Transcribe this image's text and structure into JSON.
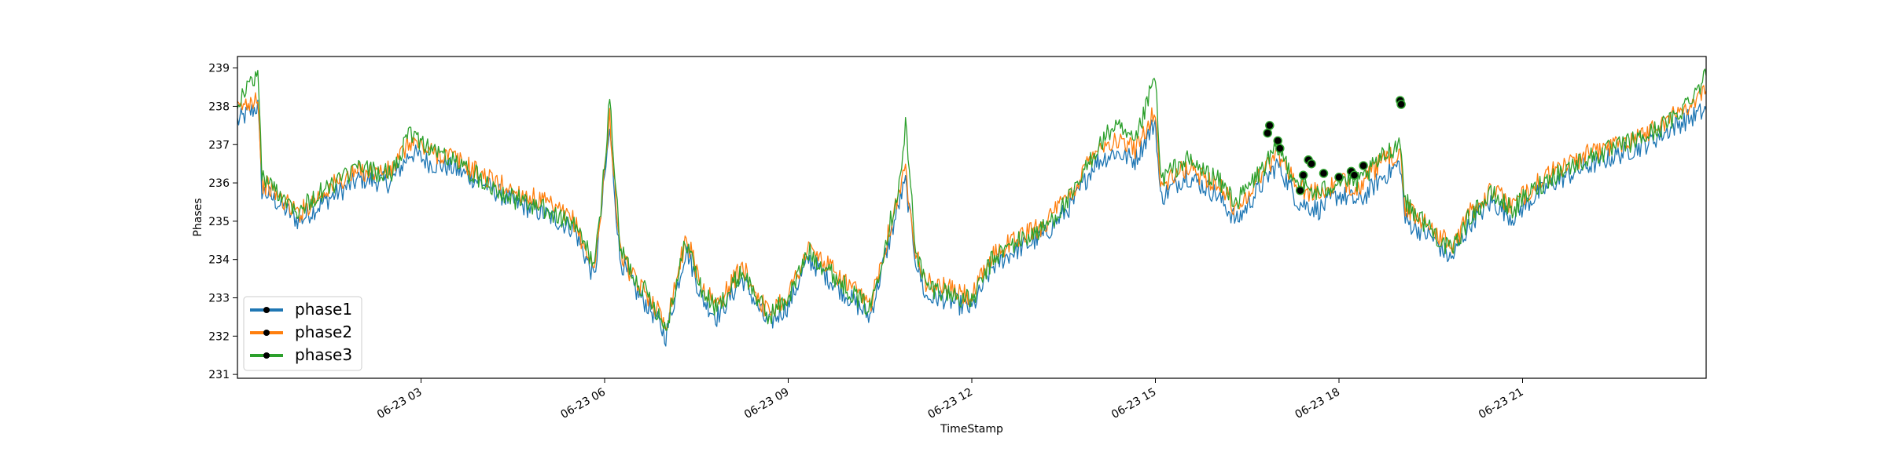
{
  "chart_data": {
    "type": "line",
    "title": "",
    "xlabel": "TimeStamp",
    "ylabel": "Phases",
    "xlim": [
      "2023-06-23 00:00",
      "2023-06-24 00:00"
    ],
    "ylim": [
      230.9,
      239.3
    ],
    "x_ticks": [
      "06-23 03",
      "06-23 06",
      "06-23 09",
      "06-23 12",
      "06-23 15",
      "06-23 18",
      "06-23 21"
    ],
    "y_ticks": [
      231,
      232,
      233,
      234,
      235,
      236,
      237,
      238,
      239
    ],
    "grid": false,
    "legend_position": "lower-left",
    "series": [
      {
        "name": "phase1",
        "color": "#1f77b4",
        "x": [
          "2023-06-23 00:00",
          "2023-06-23 00:20",
          "2023-06-23 00:24",
          "2023-06-23 00:30",
          "2023-06-23 01:00",
          "2023-06-23 01:30",
          "2023-06-23 02:00",
          "2023-06-23 02:30",
          "2023-06-23 02:50",
          "2023-06-23 03:10",
          "2023-06-23 03:30",
          "2023-06-23 04:00",
          "2023-06-23 04:30",
          "2023-06-23 05:00",
          "2023-06-23 05:30",
          "2023-06-23 05:50",
          "2023-06-23 05:55",
          "2023-06-23 06:05",
          "2023-06-23 06:15",
          "2023-06-23 06:30",
          "2023-06-23 06:45",
          "2023-06-23 07:00",
          "2023-06-23 07:20",
          "2023-06-23 07:35",
          "2023-06-23 07:50",
          "2023-06-23 08:15",
          "2023-06-23 08:40",
          "2023-06-23 09:00",
          "2023-06-23 09:20",
          "2023-06-23 09:40",
          "2023-06-23 10:00",
          "2023-06-23 10:20",
          "2023-06-23 10:50",
          "2023-06-23 10:55",
          "2023-06-23 11:05",
          "2023-06-23 11:15",
          "2023-06-23 11:30",
          "2023-06-23 12:00",
          "2023-06-23 12:20",
          "2023-06-23 12:40",
          "2023-06-23 13:10",
          "2023-06-23 13:40",
          "2023-06-23 14:00",
          "2023-06-23 14:20",
          "2023-06-23 14:40",
          "2023-06-23 15:00",
          "2023-06-23 15:05",
          "2023-06-23 15:30",
          "2023-06-23 16:00",
          "2023-06-23 16:20",
          "2023-06-23 16:40",
          "2023-06-23 17:00",
          "2023-06-23 17:20",
          "2023-06-23 17:40",
          "2023-06-23 18:00",
          "2023-06-23 18:20",
          "2023-06-23 18:40",
          "2023-06-23 19:00",
          "2023-06-23 19:05",
          "2023-06-23 19:30",
          "2023-06-23 19:50",
          "2023-06-23 20:10",
          "2023-06-23 20:30",
          "2023-06-23 20:50",
          "2023-06-23 21:10",
          "2023-06-23 21:30",
          "2023-06-23 22:00",
          "2023-06-23 22:30",
          "2023-06-23 23:00",
          "2023-06-23 23:30",
          "2023-06-24 00:00"
        ],
        "values": [
          237.6,
          238.0,
          235.8,
          235.7,
          235.0,
          235.6,
          236.1,
          236.0,
          236.8,
          236.5,
          236.4,
          236.0,
          235.5,
          235.2,
          234.8,
          233.5,
          234.8,
          237.4,
          234.0,
          233.2,
          232.7,
          232.0,
          234.3,
          233.0,
          232.5,
          233.5,
          232.3,
          232.8,
          234.0,
          233.5,
          233.0,
          232.5,
          235.6,
          236.0,
          234.0,
          233.0,
          233.0,
          232.7,
          233.8,
          234.2,
          234.6,
          235.5,
          236.5,
          236.8,
          236.6,
          237.6,
          235.6,
          236.2,
          235.7,
          235.0,
          235.8,
          236.5,
          235.5,
          235.3,
          235.7,
          235.5,
          236.1,
          236.5,
          235.0,
          234.6,
          234.0,
          235.0,
          235.5,
          235.1,
          235.6,
          236.0,
          236.4,
          236.7,
          237.0,
          237.5,
          237.9
        ]
      },
      {
        "name": "phase2",
        "color": "#ff7f0e",
        "x": [
          "2023-06-23 00:00",
          "2023-06-23 00:20",
          "2023-06-23 00:24",
          "2023-06-23 00:30",
          "2023-06-23 01:00",
          "2023-06-23 01:30",
          "2023-06-23 02:00",
          "2023-06-23 02:30",
          "2023-06-23 02:50",
          "2023-06-23 03:10",
          "2023-06-23 03:30",
          "2023-06-23 04:00",
          "2023-06-23 04:30",
          "2023-06-23 05:00",
          "2023-06-23 05:30",
          "2023-06-23 05:50",
          "2023-06-23 05:55",
          "2023-06-23 06:05",
          "2023-06-23 06:15",
          "2023-06-23 06:30",
          "2023-06-23 06:45",
          "2023-06-23 07:00",
          "2023-06-23 07:20",
          "2023-06-23 07:35",
          "2023-06-23 07:50",
          "2023-06-23 08:15",
          "2023-06-23 08:40",
          "2023-06-23 09:00",
          "2023-06-23 09:20",
          "2023-06-23 09:40",
          "2023-06-23 10:00",
          "2023-06-23 10:20",
          "2023-06-23 10:50",
          "2023-06-23 10:55",
          "2023-06-23 11:05",
          "2023-06-23 11:15",
          "2023-06-23 11:30",
          "2023-06-23 12:00",
          "2023-06-23 12:20",
          "2023-06-23 12:40",
          "2023-06-23 13:10",
          "2023-06-23 13:40",
          "2023-06-23 14:00",
          "2023-06-23 14:20",
          "2023-06-23 14:40",
          "2023-06-23 15:00",
          "2023-06-23 15:05",
          "2023-06-23 15:30",
          "2023-06-23 16:00",
          "2023-06-23 16:20",
          "2023-06-23 16:40",
          "2023-06-23 17:00",
          "2023-06-23 17:20",
          "2023-06-23 17:40",
          "2023-06-23 18:00",
          "2023-06-23 18:20",
          "2023-06-23 18:40",
          "2023-06-23 19:00",
          "2023-06-23 19:05",
          "2023-06-23 19:30",
          "2023-06-23 19:50",
          "2023-06-23 20:10",
          "2023-06-23 20:30",
          "2023-06-23 20:50",
          "2023-06-23 21:10",
          "2023-06-23 21:30",
          "2023-06-23 22:00",
          "2023-06-23 22:30",
          "2023-06-23 23:00",
          "2023-06-23 23:30",
          "2023-06-24 00:00"
        ],
        "values": [
          237.9,
          238.3,
          236.0,
          235.9,
          235.2,
          235.9,
          236.3,
          236.3,
          237.1,
          236.8,
          236.7,
          236.2,
          235.8,
          235.5,
          235.0,
          233.7,
          235.0,
          237.7,
          234.2,
          233.4,
          233.0,
          232.3,
          234.6,
          233.3,
          232.8,
          233.8,
          232.6,
          233.1,
          234.3,
          233.8,
          233.3,
          232.8,
          235.9,
          236.3,
          234.3,
          233.4,
          233.3,
          233.0,
          234.1,
          234.5,
          234.9,
          235.8,
          236.9,
          237.1,
          236.9,
          237.9,
          235.9,
          236.4,
          236.0,
          235.3,
          236.1,
          236.8,
          235.9,
          235.7,
          236.0,
          235.9,
          236.5,
          236.8,
          235.3,
          234.9,
          234.3,
          235.3,
          235.8,
          235.4,
          235.9,
          236.3,
          236.7,
          237.0,
          237.3,
          237.8,
          238.4
        ]
      },
      {
        "name": "phase3",
        "color": "#2ca02c",
        "x": [
          "2023-06-23 00:00",
          "2023-06-23 00:20",
          "2023-06-23 00:24",
          "2023-06-23 00:30",
          "2023-06-23 01:00",
          "2023-06-23 01:30",
          "2023-06-23 02:00",
          "2023-06-23 02:30",
          "2023-06-23 02:50",
          "2023-06-23 03:10",
          "2023-06-23 03:30",
          "2023-06-23 04:00",
          "2023-06-23 04:30",
          "2023-06-23 05:00",
          "2023-06-23 05:30",
          "2023-06-23 05:50",
          "2023-06-23 05:55",
          "2023-06-23 06:05",
          "2023-06-23 06:15",
          "2023-06-23 06:30",
          "2023-06-23 06:45",
          "2023-06-23 07:00",
          "2023-06-23 07:20",
          "2023-06-23 07:35",
          "2023-06-23 07:50",
          "2023-06-23 08:15",
          "2023-06-23 08:40",
          "2023-06-23 09:00",
          "2023-06-23 09:20",
          "2023-06-23 09:40",
          "2023-06-23 10:00",
          "2023-06-23 10:20",
          "2023-06-23 10:50",
          "2023-06-23 10:55",
          "2023-06-23 11:05",
          "2023-06-23 11:15",
          "2023-06-23 11:30",
          "2023-06-23 12:00",
          "2023-06-23 12:20",
          "2023-06-23 12:40",
          "2023-06-23 13:10",
          "2023-06-23 13:40",
          "2023-06-23 14:00",
          "2023-06-23 14:20",
          "2023-06-23 14:40",
          "2023-06-23 15:00",
          "2023-06-23 15:05",
          "2023-06-23 15:30",
          "2023-06-23 16:00",
          "2023-06-23 16:20",
          "2023-06-23 16:40",
          "2023-06-23 17:00",
          "2023-06-23 17:20",
          "2023-06-23 17:40",
          "2023-06-23 18:00",
          "2023-06-23 18:20",
          "2023-06-23 18:40",
          "2023-06-23 19:00",
          "2023-06-23 19:05",
          "2023-06-23 19:30",
          "2023-06-23 19:50",
          "2023-06-23 20:10",
          "2023-06-23 20:30",
          "2023-06-23 20:50",
          "2023-06-23 21:10",
          "2023-06-23 21:30",
          "2023-06-23 22:00",
          "2023-06-23 22:30",
          "2023-06-23 23:00",
          "2023-06-23 23:30",
          "2023-06-24 00:00"
        ],
        "values": [
          238.1,
          238.9,
          236.2,
          236.0,
          235.3,
          235.9,
          236.4,
          236.2,
          237.3,
          236.9,
          236.6,
          236.1,
          235.6,
          235.3,
          234.9,
          233.9,
          234.9,
          238.2,
          234.3,
          233.5,
          233.0,
          232.2,
          234.5,
          233.2,
          232.7,
          233.7,
          232.5,
          233.0,
          234.2,
          233.7,
          233.2,
          232.7,
          236.1,
          237.5,
          234.3,
          233.3,
          233.2,
          232.9,
          234.0,
          234.4,
          234.8,
          235.7,
          236.8,
          237.5,
          237.0,
          238.8,
          236.1,
          236.6,
          236.1,
          235.5,
          236.2,
          236.9,
          236.0,
          235.7,
          236.1,
          236.0,
          236.6,
          237.1,
          235.5,
          234.8,
          234.2,
          235.2,
          235.7,
          235.3,
          235.8,
          236.2,
          236.6,
          236.9,
          237.2,
          237.7,
          238.8
        ]
      }
    ],
    "markers": [
      {
        "x": "2023-06-23 16:50",
        "y": 237.3
      },
      {
        "x": "2023-06-23 16:52",
        "y": 237.5
      },
      {
        "x": "2023-06-23 17:00",
        "y": 237.1
      },
      {
        "x": "2023-06-23 17:02",
        "y": 236.9
      },
      {
        "x": "2023-06-23 17:30",
        "y": 236.6
      },
      {
        "x": "2023-06-23 17:33",
        "y": 236.5
      },
      {
        "x": "2023-06-23 17:25",
        "y": 236.2
      },
      {
        "x": "2023-06-23 17:22",
        "y": 235.8
      },
      {
        "x": "2023-06-23 17:45",
        "y": 236.25
      },
      {
        "x": "2023-06-23 18:00",
        "y": 236.15
      },
      {
        "x": "2023-06-23 18:12",
        "y": 236.3
      },
      {
        "x": "2023-06-23 18:15",
        "y": 236.2
      },
      {
        "x": "2023-06-23 18:24",
        "y": 236.45
      },
      {
        "x": "2023-06-23 19:00",
        "y": 238.15
      },
      {
        "x": "2023-06-23 19:01",
        "y": 238.05
      }
    ]
  }
}
